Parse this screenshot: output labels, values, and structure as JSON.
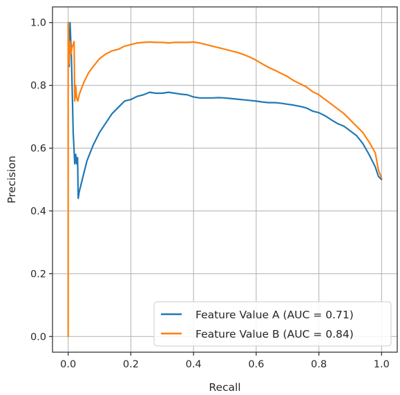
{
  "chart_data": {
    "type": "line",
    "title": "",
    "xlabel": "Recall",
    "ylabel": "Precision",
    "xlim": [
      -0.05,
      1.05
    ],
    "ylim": [
      -0.05,
      1.05
    ],
    "xticks": [
      0.0,
      0.2,
      0.4,
      0.6,
      0.8,
      1.0
    ],
    "yticks": [
      0.0,
      0.2,
      0.4,
      0.6,
      0.8,
      1.0
    ],
    "xtick_labels": [
      "0.0",
      "0.2",
      "0.4",
      "0.6",
      "0.8",
      "1.0"
    ],
    "ytick_labels": [
      "0.0",
      "0.2",
      "0.4",
      "0.6",
      "0.8",
      "1.0"
    ],
    "grid": true,
    "legend_position": "bottom-right",
    "series": [
      {
        "name": "Feature Value A (AUC = 0.71)",
        "color": "#1f77b4",
        "points": [
          [
            0.0,
            1.0
          ],
          [
            0.003,
            0.86
          ],
          [
            0.006,
            1.0
          ],
          [
            0.01,
            0.9
          ],
          [
            0.013,
            0.78
          ],
          [
            0.016,
            0.65
          ],
          [
            0.019,
            0.59
          ],
          [
            0.021,
            0.55
          ],
          [
            0.024,
            0.58
          ],
          [
            0.027,
            0.55
          ],
          [
            0.03,
            0.57
          ],
          [
            0.032,
            0.44
          ],
          [
            0.035,
            0.46
          ],
          [
            0.045,
            0.5
          ],
          [
            0.06,
            0.56
          ],
          [
            0.08,
            0.61
          ],
          [
            0.1,
            0.65
          ],
          [
            0.12,
            0.68
          ],
          [
            0.14,
            0.71
          ],
          [
            0.16,
            0.73
          ],
          [
            0.18,
            0.75
          ],
          [
            0.2,
            0.755
          ],
          [
            0.22,
            0.765
          ],
          [
            0.24,
            0.77
          ],
          [
            0.26,
            0.778
          ],
          [
            0.28,
            0.775
          ],
          [
            0.3,
            0.775
          ],
          [
            0.32,
            0.778
          ],
          [
            0.34,
            0.775
          ],
          [
            0.36,
            0.772
          ],
          [
            0.38,
            0.77
          ],
          [
            0.4,
            0.763
          ],
          [
            0.42,
            0.76
          ],
          [
            0.44,
            0.76
          ],
          [
            0.46,
            0.76
          ],
          [
            0.48,
            0.761
          ],
          [
            0.5,
            0.76
          ],
          [
            0.52,
            0.758
          ],
          [
            0.54,
            0.756
          ],
          [
            0.56,
            0.754
          ],
          [
            0.58,
            0.752
          ],
          [
            0.6,
            0.75
          ],
          [
            0.62,
            0.747
          ],
          [
            0.64,
            0.745
          ],
          [
            0.66,
            0.745
          ],
          [
            0.68,
            0.743
          ],
          [
            0.7,
            0.74
          ],
          [
            0.72,
            0.737
          ],
          [
            0.74,
            0.733
          ],
          [
            0.76,
            0.728
          ],
          [
            0.78,
            0.718
          ],
          [
            0.8,
            0.713
          ],
          [
            0.82,
            0.703
          ],
          [
            0.84,
            0.69
          ],
          [
            0.86,
            0.678
          ],
          [
            0.88,
            0.67
          ],
          [
            0.9,
            0.655
          ],
          [
            0.92,
            0.64
          ],
          [
            0.94,
            0.615
          ],
          [
            0.96,
            0.58
          ],
          [
            0.98,
            0.54
          ],
          [
            0.99,
            0.51
          ],
          [
            1.0,
            0.5
          ]
        ]
      },
      {
        "name": "Feature Value B (AUC = 0.84)",
        "color": "#ff7f0e",
        "points": [
          [
            0.0,
            0.0
          ],
          [
            0.0,
            1.0
          ],
          [
            0.003,
            0.87
          ],
          [
            0.006,
            0.94
          ],
          [
            0.009,
            0.9
          ],
          [
            0.012,
            0.92
          ],
          [
            0.016,
            0.93
          ],
          [
            0.019,
            0.94
          ],
          [
            0.021,
            0.75
          ],
          [
            0.024,
            0.8
          ],
          [
            0.027,
            0.76
          ],
          [
            0.031,
            0.75
          ],
          [
            0.035,
            0.77
          ],
          [
            0.05,
            0.81
          ],
          [
            0.065,
            0.84
          ],
          [
            0.08,
            0.86
          ],
          [
            0.1,
            0.885
          ],
          [
            0.12,
            0.9
          ],
          [
            0.14,
            0.91
          ],
          [
            0.16,
            0.915
          ],
          [
            0.18,
            0.925
          ],
          [
            0.2,
            0.93
          ],
          [
            0.22,
            0.935
          ],
          [
            0.24,
            0.937
          ],
          [
            0.26,
            0.938
          ],
          [
            0.28,
            0.937
          ],
          [
            0.3,
            0.937
          ],
          [
            0.32,
            0.935
          ],
          [
            0.34,
            0.937
          ],
          [
            0.36,
            0.937
          ],
          [
            0.38,
            0.937
          ],
          [
            0.4,
            0.938
          ],
          [
            0.42,
            0.935
          ],
          [
            0.44,
            0.93
          ],
          [
            0.46,
            0.925
          ],
          [
            0.48,
            0.92
          ],
          [
            0.5,
            0.915
          ],
          [
            0.52,
            0.91
          ],
          [
            0.54,
            0.905
          ],
          [
            0.56,
            0.898
          ],
          [
            0.58,
            0.89
          ],
          [
            0.6,
            0.88
          ],
          [
            0.62,
            0.868
          ],
          [
            0.64,
            0.857
          ],
          [
            0.66,
            0.848
          ],
          [
            0.68,
            0.838
          ],
          [
            0.7,
            0.828
          ],
          [
            0.72,
            0.815
          ],
          [
            0.74,
            0.805
          ],
          [
            0.76,
            0.795
          ],
          [
            0.78,
            0.78
          ],
          [
            0.8,
            0.77
          ],
          [
            0.82,
            0.755
          ],
          [
            0.84,
            0.74
          ],
          [
            0.86,
            0.725
          ],
          [
            0.88,
            0.71
          ],
          [
            0.9,
            0.69
          ],
          [
            0.92,
            0.67
          ],
          [
            0.94,
            0.65
          ],
          [
            0.96,
            0.62
          ],
          [
            0.98,
            0.585
          ],
          [
            0.99,
            0.53
          ],
          [
            1.0,
            0.505
          ]
        ]
      }
    ]
  }
}
